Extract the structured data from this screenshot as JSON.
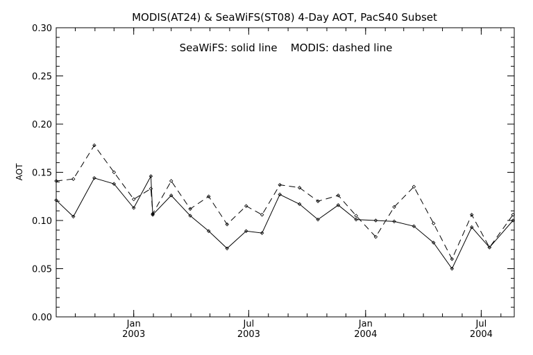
{
  "chart_data": {
    "type": "line",
    "title": "MODIS(AT24) & SeaWiFS(ST08) 4-Day AOT, PacS40 Subset",
    "annotation": "SeaWiFS: solid line    MODIS: dashed line",
    "xlabel": "",
    "ylabel": "AOT",
    "ylim": [
      0.0,
      0.3
    ],
    "yticks": [
      "0.00",
      "0.05",
      "0.10",
      "0.15",
      "0.20",
      "0.25",
      "0.30"
    ],
    "xlim": [
      "2002-09-01",
      "2004-08-22"
    ],
    "xticks": [
      {
        "date": "2003-01-01",
        "month": "Jan",
        "year": "2003"
      },
      {
        "date": "2003-07-01",
        "month": "Jul",
        "year": "2003"
      },
      {
        "date": "2004-01-01",
        "month": "Jan",
        "year": "2004"
      },
      {
        "date": "2004-07-01",
        "month": "Jul",
        "year": "2004"
      }
    ],
    "grid": false,
    "legend": "none",
    "series": [
      {
        "name": "SeaWiFS",
        "style": "solid",
        "color": "#000000",
        "x": [
          "2002-09-01",
          "2002-09-28",
          "2002-10-31",
          "2002-12-01",
          "2003-01-01",
          "2003-01-28",
          "2003-01-31",
          "2003-03-01",
          "2003-03-31",
          "2003-04-29",
          "2003-05-28",
          "2003-06-27",
          "2003-07-22",
          "2003-08-19",
          "2003-09-19",
          "2003-10-18",
          "2003-11-19",
          "2003-12-17",
          "2004-01-17",
          "2004-02-15",
          "2004-03-17",
          "2004-04-17",
          "2004-05-16",
          "2004-06-16",
          "2004-07-14",
          "2004-08-20"
        ],
        "values": [
          0.121,
          0.104,
          0.144,
          0.138,
          0.113,
          0.146,
          0.106,
          0.126,
          0.105,
          0.089,
          0.071,
          0.089,
          0.087,
          0.127,
          0.117,
          0.101,
          0.116,
          0.101,
          0.1,
          0.099,
          0.094,
          0.077,
          0.05,
          0.093,
          0.072,
          0.1
        ]
      },
      {
        "name": "MODIS",
        "style": "dashed",
        "color": "#000000",
        "x": [
          "2002-09-01",
          "2002-09-28",
          "2002-10-31",
          "2002-12-01",
          "2003-01-01",
          "2003-01-28",
          "2003-01-31",
          "2003-03-01",
          "2003-03-31",
          "2003-04-29",
          "2003-05-28",
          "2003-06-27",
          "2003-07-22",
          "2003-08-19",
          "2003-09-19",
          "2003-10-18",
          "2003-11-19",
          "2003-12-17",
          "2004-01-17",
          "2004-02-15",
          "2004-03-17",
          "2004-04-17",
          "2004-05-16",
          "2004-06-16",
          "2004-07-14",
          "2004-08-20"
        ],
        "values": [
          0.141,
          0.143,
          0.178,
          0.15,
          0.122,
          0.133,
          0.107,
          0.141,
          0.112,
          0.125,
          0.096,
          0.115,
          0.106,
          0.137,
          0.134,
          0.12,
          0.126,
          0.105,
          0.083,
          0.114,
          0.135,
          0.097,
          0.06,
          0.106,
          0.072,
          0.106
        ]
      }
    ]
  }
}
